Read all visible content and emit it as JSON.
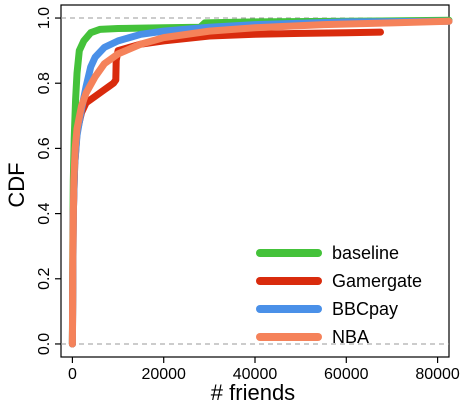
{
  "chart_data": {
    "type": "line",
    "xlabel": "# friends",
    "ylabel": "CDF",
    "xlim": [
      -2500,
      82500
    ],
    "ylim": [
      -0.04,
      1.04
    ],
    "x_ticks": [
      0,
      20000,
      40000,
      60000,
      80000
    ],
    "y_ticks": [
      0.0,
      0.2,
      0.4,
      0.6,
      0.8,
      1.0
    ],
    "x_tick_labels": [
      "0",
      "20000",
      "40000",
      "60000",
      "80000"
    ],
    "y_tick_labels": [
      "0.0",
      "0.2",
      "0.4",
      "0.6",
      "0.8",
      "1.0"
    ],
    "reference_lines": [
      0,
      1
    ],
    "legend_position": "bottom-right",
    "series": [
      {
        "name": "baseline",
        "color": "#44c23a",
        "points": [
          [
            0,
            0.0
          ],
          [
            100,
            0.35
          ],
          [
            200,
            0.5
          ],
          [
            400,
            0.63
          ],
          [
            700,
            0.75
          ],
          [
            1000,
            0.83
          ],
          [
            1500,
            0.9
          ],
          [
            2500,
            0.93
          ],
          [
            4000,
            0.955
          ],
          [
            6000,
            0.965
          ],
          [
            10000,
            0.968
          ],
          [
            20000,
            0.97
          ],
          [
            28000,
            0.972
          ],
          [
            29000,
            0.985
          ],
          [
            40000,
            0.988
          ],
          [
            60000,
            0.99
          ],
          [
            82500,
            0.993
          ]
        ]
      },
      {
        "name": "Gamergate",
        "color": "#d92b0d",
        "points": [
          [
            0,
            0.0
          ],
          [
            200,
            0.4
          ],
          [
            500,
            0.55
          ],
          [
            1000,
            0.65
          ],
          [
            2000,
            0.71
          ],
          [
            3000,
            0.74
          ],
          [
            5000,
            0.76
          ],
          [
            7000,
            0.78
          ],
          [
            8000,
            0.79
          ],
          [
            9000,
            0.8
          ],
          [
            9500,
            0.81
          ],
          [
            9600,
            0.87
          ],
          [
            10000,
            0.9
          ],
          [
            15000,
            0.92
          ],
          [
            20000,
            0.93
          ],
          [
            30000,
            0.945
          ],
          [
            40000,
            0.95
          ],
          [
            50000,
            0.953
          ],
          [
            60000,
            0.955
          ],
          [
            67500,
            0.957
          ]
        ]
      },
      {
        "name": "BBCpay",
        "color": "#4a90e8",
        "points": [
          [
            0,
            0.0
          ],
          [
            200,
            0.4
          ],
          [
            500,
            0.55
          ],
          [
            1000,
            0.64
          ],
          [
            2000,
            0.72
          ],
          [
            3000,
            0.79
          ],
          [
            4000,
            0.85
          ],
          [
            5000,
            0.88
          ],
          [
            7000,
            0.91
          ],
          [
            10000,
            0.93
          ],
          [
            15000,
            0.95
          ],
          [
            20000,
            0.96
          ],
          [
            30000,
            0.972
          ],
          [
            40000,
            0.98
          ],
          [
            60000,
            0.988
          ],
          [
            82500,
            0.99
          ]
        ]
      },
      {
        "name": "NBA",
        "color": "#f5825a",
        "points": [
          [
            0,
            0.0
          ],
          [
            100,
            0.3
          ],
          [
            300,
            0.5
          ],
          [
            600,
            0.6
          ],
          [
            1000,
            0.66
          ],
          [
            2000,
            0.73
          ],
          [
            3000,
            0.77
          ],
          [
            5000,
            0.82
          ],
          [
            7000,
            0.86
          ],
          [
            10000,
            0.89
          ],
          [
            15000,
            0.92
          ],
          [
            20000,
            0.94
          ],
          [
            30000,
            0.96
          ],
          [
            40000,
            0.97
          ],
          [
            55000,
            0.98
          ],
          [
            70000,
            0.985
          ],
          [
            82500,
            0.99
          ]
        ]
      }
    ]
  }
}
